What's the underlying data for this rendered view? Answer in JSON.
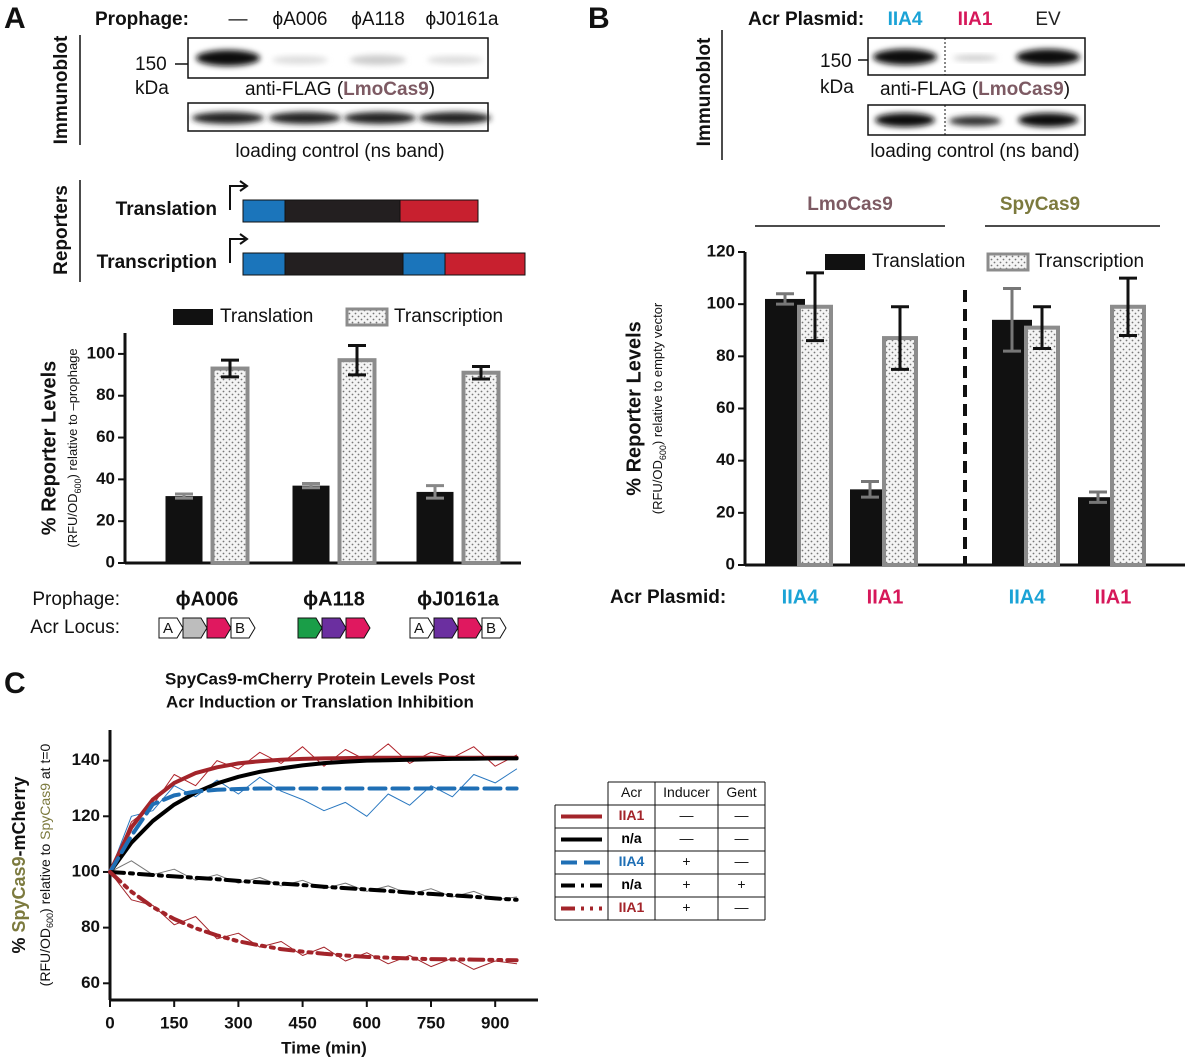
{
  "panel_labels": [
    "A",
    "B",
    "C"
  ],
  "panel_a": {
    "immunoblot_label": "Immunoblot",
    "prophage_label": "Prophage:",
    "lanes": [
      "—",
      "ϕA006",
      "ϕA118",
      "ϕJ0161a"
    ],
    "marker": "150",
    "marker_unit": "kDa",
    "blot_label": [
      "anti-FLAG (",
      "LmoCas9",
      ")"
    ],
    "loading_label": "loading control (ns band)",
    "reporters_label": "Reporters",
    "reporters": [
      "Translation",
      "Transcription"
    ],
    "acr_locus_label": "Acr Locus:",
    "loci": [
      [
        {
          "label": "A",
          "fill": "#ffffff"
        },
        {
          "fill": "#bdbdbd"
        },
        {
          "fill": "#e0185f"
        },
        {
          "label": "B",
          "fill": "#ffffff"
        }
      ],
      [
        {
          "fill": "#1a9e48"
        },
        {
          "fill": "#6b2fa0"
        },
        {
          "fill": "#e0185f"
        }
      ],
      [
        {
          "label": "A",
          "fill": "#ffffff"
        },
        {
          "fill": "#6b2fa0"
        },
        {
          "fill": "#e0185f"
        },
        {
          "label": "B",
          "fill": "#ffffff"
        }
      ]
    ]
  },
  "panel_b": {
    "immunoblot_label": "Immunoblot",
    "plasmid_label": "Acr Plasmid:",
    "lanes": [
      "IIA4",
      "IIA1",
      "EV"
    ],
    "lane_colors": [
      "#1ba3d6",
      "#d6185a",
      "#222222"
    ],
    "marker": "150",
    "marker_unit": "kDa",
    "blot_label": [
      "anti-FLAG (",
      "LmoCas9",
      ")"
    ],
    "loading_label": "loading control (ns band)"
  },
  "legend_table": {
    "header": [
      "Acr",
      "Inducer",
      "Gent"
    ],
    "rows": [
      [
        "IIA1",
        "—",
        "—"
      ],
      [
        "n/a",
        "—",
        "—"
      ],
      [
        "IIA4",
        "+",
        "—"
      ],
      [
        "n/a",
        "+",
        "+"
      ],
      [
        "IIA1",
        "+",
        "—"
      ]
    ]
  },
  "chart_data": [
    {
      "type": "bar",
      "y_label": "% Reporter Levels",
      "y_sublabel": [
        "(RFU/OD",
        "600",
        ") relative to –prophage"
      ],
      "x_row_label": "Prophage:",
      "categories": [
        "ϕA006",
        "ϕA118",
        "ϕJ0161a"
      ],
      "series": [
        {
          "name": "Translation",
          "color": "#111111",
          "pattern": "solid",
          "error_color": "#888888",
          "values": [
            32,
            37,
            34
          ],
          "errors": [
            1,
            1,
            3
          ]
        },
        {
          "name": "Transcription",
          "color": "#8c8c8c",
          "pattern": "dots",
          "error_color": "#111111",
          "values": [
            93,
            97,
            91
          ],
          "errors": [
            4,
            7,
            3
          ]
        }
      ],
      "ylim": [
        0,
        110
      ],
      "yticks": [
        0,
        20,
        40,
        60,
        80,
        100
      ]
    },
    {
      "type": "bar",
      "y_label": "% Reporter Levels",
      "y_sublabel": [
        "(RFU/OD",
        "600",
        ") relative to empty vector"
      ],
      "x_row_label": "Acr Plasmid:",
      "categories": [
        "IIA4",
        "IIA1",
        "IIA4",
        "IIA1"
      ],
      "category_colors": [
        "#1ba3d6",
        "#d6185a",
        "#1ba3d6",
        "#d6185a"
      ],
      "groups": [
        {
          "name": "LmoCas9",
          "color": "#7d5a63"
        },
        {
          "name": "SpyCas9",
          "color": "#7c7a3e"
        }
      ],
      "series": [
        {
          "name": "Translation",
          "color": "#111111",
          "pattern": "solid",
          "error_color": "#777777",
          "values": [
            102,
            29,
            94,
            26
          ],
          "errors": [
            2,
            3,
            12,
            2
          ]
        },
        {
          "name": "Transcription",
          "color": "#8c8c8c",
          "pattern": "dots",
          "error_color": "#111111",
          "values": [
            99,
            87,
            91,
            99
          ],
          "errors": [
            13,
            12,
            8,
            11
          ]
        }
      ],
      "ylim": [
        0,
        120
      ],
      "yticks": [
        0,
        20,
        40,
        60,
        80,
        100,
        120
      ]
    },
    {
      "type": "line",
      "title": [
        "SpyCas9-mCherry Protein Levels Post",
        "Acr Induction or Translation Inhibition"
      ],
      "x_label": "Time (min)",
      "y_label": [
        "% ",
        "SpyCas9",
        "-mCherry"
      ],
      "y_sublabel": [
        "(RFU/OD",
        "600",
        ") relative to ",
        "SpyCas9",
        " at t=0"
      ],
      "x": [
        0,
        50,
        100,
        150,
        200,
        250,
        300,
        350,
        400,
        450,
        500,
        550,
        600,
        650,
        700,
        750,
        800,
        850,
        900,
        950
      ],
      "series": [
        {
          "color": "#a3242a",
          "dash": "solid",
          "width": 4,
          "values": [
            100,
            116,
            126,
            132,
            135.5,
            137.6,
            139,
            139.8,
            140.3,
            140.6,
            140.8,
            140.9,
            141,
            141,
            141,
            141,
            141,
            141,
            141,
            141
          ]
        },
        {
          "color": "#000000",
          "dash": "solid",
          "width": 4,
          "values": [
            100,
            110.5,
            118.3,
            124.2,
            128.5,
            131.8,
            134.2,
            136,
            137.2,
            138.3,
            139.1,
            139.6,
            140,
            140.1,
            140.3,
            140.5,
            140.6,
            140.7,
            140.8,
            140.8
          ]
        },
        {
          "color": "#1f6fb5",
          "dash": "dash",
          "width": 4,
          "values": [
            100,
            113,
            124.3,
            127.5,
            128.9,
            129.5,
            129.8,
            130,
            130,
            130,
            130,
            130,
            130,
            130,
            130,
            130,
            130,
            130,
            130,
            130
          ]
        },
        {
          "color": "#000000",
          "dash": "dashdot",
          "width": 4,
          "values": [
            100,
            99.5,
            98.9,
            98.4,
            97.9,
            97.4,
            96.8,
            96.3,
            95.8,
            95.3,
            94.7,
            94.2,
            93.7,
            93.2,
            92.6,
            92.1,
            91.6,
            91.1,
            90.5,
            90
          ]
        },
        {
          "color": "#a3242a",
          "dash": "dashdotdot",
          "width": 4,
          "values": [
            100,
            92.9,
            87.4,
            83.1,
            79.8,
            77.2,
            75.1,
            73.6,
            72.3,
            71.4,
            70.6,
            70,
            69.5,
            69.2,
            68.9,
            68.7,
            68.6,
            68.5,
            68.4,
            68.3
          ]
        },
        {
          "color": "#b0222a",
          "dash": "solid",
          "width": 1,
          "values": [
            100,
            118,
            124,
            135,
            131,
            140,
            137,
            143,
            139,
            145,
            138,
            144,
            140,
            146,
            139,
            143,
            141,
            145,
            138,
            142
          ]
        },
        {
          "color": "#2a78c0",
          "dash": "solid",
          "width": 1,
          "values": [
            100,
            120,
            122,
            131,
            127,
            133,
            128,
            134,
            129,
            126,
            122,
            125,
            120,
            128,
            124,
            131,
            127,
            135,
            132,
            137
          ]
        },
        {
          "color": "#777777",
          "dash": "solid",
          "width": 1,
          "values": [
            100,
            104,
            99,
            101,
            97,
            99,
            96,
            98,
            95,
            97,
            94,
            96,
            93,
            95,
            92,
            94,
            91,
            93,
            90,
            91
          ]
        },
        {
          "color": "#a3242a",
          "dash": "solid",
          "width": 1,
          "values": [
            100,
            90,
            88,
            81,
            84,
            76,
            78,
            73,
            75,
            70,
            73,
            68,
            71,
            67,
            70,
            66,
            69,
            65,
            68,
            67
          ]
        }
      ],
      "xlim": [
        0,
        1000
      ],
      "ylim": [
        54,
        151
      ],
      "xticks": [
        0,
        150,
        300,
        450,
        600,
        750,
        900
      ],
      "yticks": [
        60,
        80,
        100,
        120,
        140
      ]
    }
  ]
}
